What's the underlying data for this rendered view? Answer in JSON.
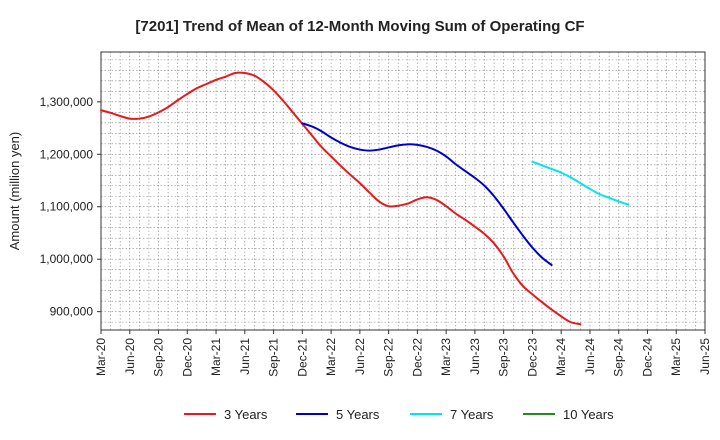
{
  "chart_data": {
    "type": "line",
    "title": "[7201]  Trend of Mean of 12-Month Moving Sum of Operating CF",
    "xlabel": "",
    "ylabel": "Amount (million yen)",
    "ylim": [
      865000,
      1395000
    ],
    "yticks": [
      900000,
      1000000,
      1100000,
      1200000,
      1300000
    ],
    "ytick_labels": [
      "900,000",
      "1,000,000",
      "1,100,000",
      "1,200,000",
      "1,300,000"
    ],
    "xtick_labels": [
      "Mar-20",
      "Jun-20",
      "Sep-20",
      "Dec-20",
      "Mar-21",
      "Jun-21",
      "Sep-21",
      "Dec-21",
      "Mar-22",
      "Jun-22",
      "Sep-22",
      "Dec-22",
      "Mar-23",
      "Jun-23",
      "Sep-23",
      "Dec-23",
      "Mar-24",
      "Jun-24",
      "Sep-24",
      "Dec-24",
      "Mar-25",
      "Jun-25"
    ],
    "grid": true,
    "legend_position": "bottom",
    "series": [
      {
        "name": "3 Years",
        "color": "#e41a1c",
        "start_index": 0,
        "values": [
          1284000,
          1279000,
          1273000,
          1268000,
          1268000,
          1272000,
          1280000,
          1290000,
          1303000,
          1315000,
          1326000,
          1334000,
          1342000,
          1348000,
          1355000,
          1355000,
          1350000,
          1338000,
          1322000,
          1302000,
          1280000,
          1258000,
          1236000,
          1214000,
          1196000,
          1178000,
          1161000,
          1145000,
          1127000,
          1110000,
          1101000,
          1102000,
          1106000,
          1114000,
          1118000,
          1113000,
          1101000,
          1087000,
          1075000,
          1062000,
          1048000,
          1030000,
          1005000,
          973000,
          949000,
          933000,
          918000,
          904000,
          891000,
          880000,
          876000
        ]
      },
      {
        "name": "5 Years",
        "color": "#0000cd",
        "start_index": 21,
        "values": [
          1259000,
          1253000,
          1244000,
          1232000,
          1222000,
          1214000,
          1209000,
          1207000,
          1209000,
          1213000,
          1217000,
          1219000,
          1218000,
          1214000,
          1207000,
          1196000,
          1181000,
          1168000,
          1155000,
          1140000,
          1120000,
          1096000,
          1070000,
          1045000,
          1022000,
          1003000,
          989000
        ]
      },
      {
        "name": "7 Years",
        "color": "#00e5ee",
        "start_index": 45,
        "values": [
          1186000,
          1179000,
          1172000,
          1165000,
          1156000,
          1145000,
          1134000,
          1124000,
          1117000,
          1110000,
          1104000
        ]
      },
      {
        "name": "10 Years",
        "color": "#228b22",
        "start_index": 0,
        "values": []
      }
    ]
  }
}
